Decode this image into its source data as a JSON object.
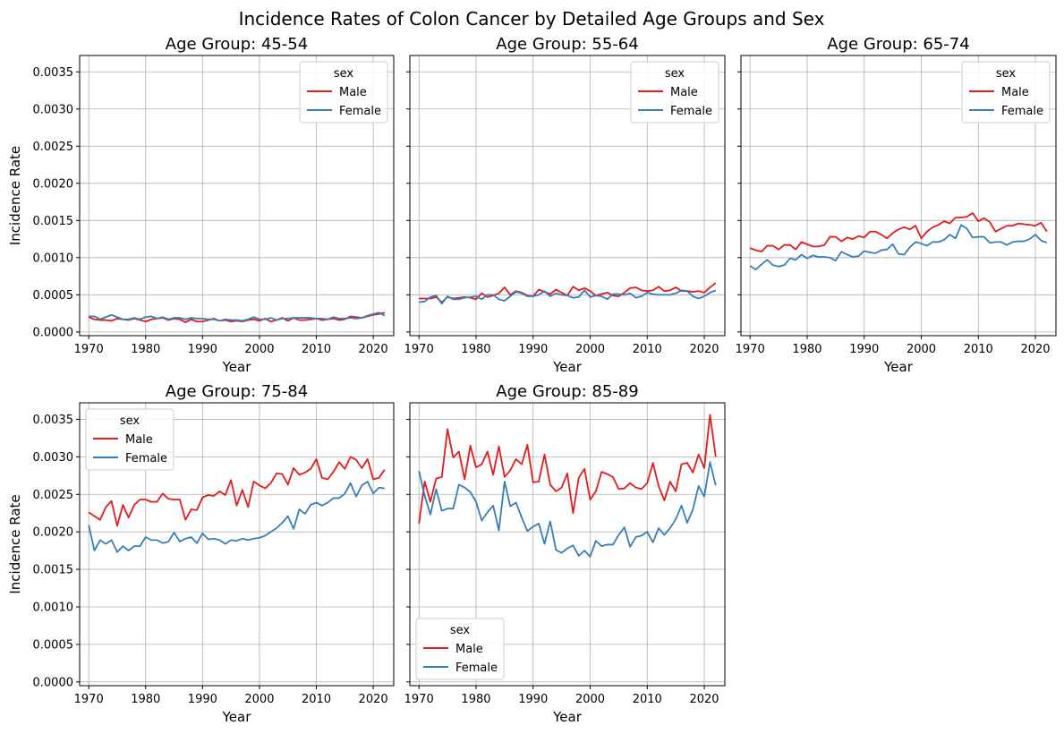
{
  "figure": {
    "title": "Incidence Rates of Colon Cancer by Detailed Age Groups and Sex"
  },
  "colors": {
    "Male": "#e41a1c",
    "Female": "#377eb8",
    "grid": "#b0b0b0"
  },
  "chart_data": [
    {
      "type": "line",
      "title": "Age Group: 45-54",
      "xlabel": "Year",
      "ylabel": "Incidence Rate",
      "xlim": [
        1968.4,
        2023.6
      ],
      "ylim": [
        -5e-05,
        0.00372
      ],
      "xticks": [
        1970,
        1980,
        1990,
        2000,
        2010,
        2020
      ],
      "xtick_labels": [
        "1970",
        "1980",
        "1990",
        "2000",
        "2010",
        "2020"
      ],
      "yticks": [
        0.0,
        0.0005,
        0.001,
        0.0015,
        0.002,
        0.0025,
        0.003,
        0.0035
      ],
      "ytick_labels": [
        "0.0000",
        "0.0005",
        "0.0010",
        "0.0015",
        "0.0020",
        "0.0025",
        "0.0030",
        "0.0035"
      ],
      "grid": true,
      "legend": {
        "title": "sex",
        "position": "top-right",
        "entries": [
          "Male",
          "Female"
        ]
      },
      "x_start": 1970,
      "series": [
        {
          "name": "Male",
          "values": [
            0.0002,
            0.00017,
            0.00016,
            0.00016,
            0.00015,
            0.00018,
            0.00017,
            0.00016,
            0.00018,
            0.00016,
            0.00014,
            0.00017,
            0.00018,
            0.00019,
            0.00016,
            0.00018,
            0.00017,
            0.00013,
            0.00017,
            0.00014,
            0.00014,
            0.00016,
            0.00018,
            0.00015,
            0.00016,
            0.00014,
            0.00015,
            0.00014,
            0.00016,
            0.00017,
            0.00015,
            0.00018,
            0.00014,
            0.00016,
            0.00019,
            0.00015,
            0.00019,
            0.00016,
            0.00016,
            0.00017,
            0.00018,
            0.00016,
            0.00017,
            0.00018,
            0.00016,
            0.00017,
            0.00021,
            0.0002,
            0.00019,
            0.00021,
            0.00023,
            0.00024,
            0.00026
          ]
        },
        {
          "name": "Female",
          "values": [
            0.00021,
            0.00021,
            0.00017,
            0.0002,
            0.00023,
            0.0002,
            0.00017,
            0.00017,
            0.00019,
            0.00017,
            0.0002,
            0.00021,
            0.00018,
            0.0002,
            0.00017,
            0.00019,
            0.00019,
            0.00017,
            0.00019,
            0.00018,
            0.00018,
            0.00017,
            0.00017,
            0.00015,
            0.00017,
            0.00016,
            0.00016,
            0.00015,
            0.00017,
            0.0002,
            0.00017,
            0.00017,
            0.00019,
            0.00016,
            0.00018,
            0.00018,
            0.00019,
            0.00019,
            0.00019,
            0.00019,
            0.00018,
            0.00018,
            0.00017,
            0.0002,
            0.00018,
            0.00018,
            0.00019,
            0.00018,
            0.00019,
            0.00022,
            0.00024,
            0.00026,
            0.00022
          ]
        }
      ]
    },
    {
      "type": "line",
      "title": "Age Group: 55-64",
      "xlabel": "Year",
      "ylabel": "",
      "xlim": [
        1968.4,
        2023.6
      ],
      "ylim": [
        -5e-05,
        0.00372
      ],
      "xticks": [
        1970,
        1980,
        1990,
        2000,
        2010,
        2020
      ],
      "xtick_labels": [
        "1970",
        "1980",
        "1990",
        "2000",
        "2010",
        "2020"
      ],
      "yticks": [
        0.0,
        0.0005,
        0.001,
        0.0015,
        0.002,
        0.0025,
        0.003,
        0.0035
      ],
      "ytick_labels": [],
      "grid": true,
      "legend": {
        "title": "sex",
        "position": "top-right",
        "entries": [
          "Male",
          "Female"
        ]
      },
      "x_start": 1970,
      "series": [
        {
          "name": "Male",
          "values": [
            0.00045,
            0.00045,
            0.00045,
            0.00047,
            0.0004,
            0.00047,
            0.00045,
            0.00046,
            0.00047,
            0.00046,
            0.00044,
            0.00052,
            0.00047,
            0.00049,
            0.00052,
            0.0006,
            0.0005,
            0.00055,
            0.00053,
            0.00049,
            0.00048,
            0.00057,
            0.00054,
            0.00051,
            0.00057,
            0.00053,
            0.00049,
            0.00061,
            0.00056,
            0.00059,
            0.00055,
            0.00049,
            0.00051,
            0.00053,
            0.00049,
            0.00048,
            0.00053,
            0.00059,
            0.0006,
            0.00056,
            0.00055,
            0.00056,
            0.00061,
            0.00055,
            0.00056,
            0.0006,
            0.00055,
            0.00055,
            0.00054,
            0.00055,
            0.00053,
            0.0006,
            0.00066
          ]
        },
        {
          "name": "Female",
          "values": [
            0.0004,
            0.00041,
            0.00047,
            0.00049,
            0.00038,
            0.00048,
            0.00044,
            0.00044,
            0.00046,
            0.00047,
            0.00048,
            0.00044,
            0.0005,
            0.0005,
            0.00044,
            0.00042,
            0.00048,
            0.00054,
            0.00052,
            0.00048,
            0.00048,
            0.0005,
            0.00055,
            0.00048,
            0.00052,
            0.0005,
            0.00049,
            0.00046,
            0.00047,
            0.00056,
            0.00047,
            0.00049,
            0.00048,
            0.00044,
            0.00051,
            0.00051,
            0.0005,
            0.00052,
            0.00046,
            0.00048,
            0.00053,
            0.00051,
            0.0005,
            0.0005,
            0.0005,
            0.00052,
            0.00056,
            0.00055,
            0.00048,
            0.00045,
            0.00048,
            0.00053,
            0.00056
          ]
        }
      ]
    },
    {
      "type": "line",
      "title": "Age Group: 65-74",
      "xlabel": "Year",
      "ylabel": "",
      "xlim": [
        1968.4,
        2023.6
      ],
      "ylim": [
        -5e-05,
        0.00372
      ],
      "xticks": [
        1970,
        1980,
        1990,
        2000,
        2010,
        2020
      ],
      "xtick_labels": [
        "1970",
        "1980",
        "1990",
        "2000",
        "2010",
        "2020"
      ],
      "yticks": [
        0.0,
        0.0005,
        0.001,
        0.0015,
        0.002,
        0.0025,
        0.003,
        0.0035
      ],
      "ytick_labels": [],
      "grid": true,
      "legend": {
        "title": "sex",
        "position": "top-right",
        "entries": [
          "Male",
          "Female"
        ]
      },
      "x_start": 1970,
      "series": [
        {
          "name": "Male",
          "values": [
            0.00113,
            0.0011,
            0.00108,
            0.00116,
            0.00116,
            0.00111,
            0.00117,
            0.00117,
            0.00111,
            0.00121,
            0.00118,
            0.00115,
            0.00115,
            0.00117,
            0.00128,
            0.00128,
            0.00122,
            0.00127,
            0.00125,
            0.00129,
            0.00127,
            0.00135,
            0.00135,
            0.00131,
            0.00126,
            0.00133,
            0.00138,
            0.00141,
            0.00138,
            0.00143,
            0.00126,
            0.00135,
            0.00141,
            0.00144,
            0.00149,
            0.00146,
            0.00154,
            0.00154,
            0.00155,
            0.0016,
            0.00149,
            0.00153,
            0.00148,
            0.00135,
            0.00139,
            0.00143,
            0.00143,
            0.00146,
            0.00145,
            0.00144,
            0.00143,
            0.00147,
            0.00135
          ]
        },
        {
          "name": "Female",
          "values": [
            0.00089,
            0.00084,
            0.00091,
            0.00097,
            0.0009,
            0.00088,
            0.0009,
            0.00099,
            0.00097,
            0.00104,
            0.00099,
            0.00103,
            0.00101,
            0.00101,
            0.001,
            0.00096,
            0.00108,
            0.00104,
            0.00101,
            0.00102,
            0.00109,
            0.00107,
            0.00106,
            0.0011,
            0.00111,
            0.00118,
            0.00105,
            0.00104,
            0.00114,
            0.00121,
            0.00119,
            0.00116,
            0.00121,
            0.00121,
            0.00124,
            0.00131,
            0.00126,
            0.00144,
            0.00139,
            0.00127,
            0.00128,
            0.00128,
            0.0012,
            0.00121,
            0.00121,
            0.00117,
            0.00121,
            0.00122,
            0.00122,
            0.00125,
            0.00131,
            0.00123,
            0.0012
          ]
        }
      ]
    },
    {
      "type": "line",
      "title": "Age Group: 75-84",
      "xlabel": "Year",
      "ylabel": "Incidence Rate",
      "xlim": [
        1968.4,
        2023.6
      ],
      "ylim": [
        -5e-05,
        0.00372
      ],
      "xticks": [
        1970,
        1980,
        1990,
        2000,
        2010,
        2020
      ],
      "xtick_labels": [
        "1970",
        "1980",
        "1990",
        "2000",
        "2010",
        "2020"
      ],
      "yticks": [
        0.0,
        0.0005,
        0.001,
        0.0015,
        0.002,
        0.0025,
        0.003,
        0.0035
      ],
      "ytick_labels": [
        "0.0000",
        "0.0005",
        "0.0010",
        "0.0015",
        "0.0020",
        "0.0025",
        "0.0030",
        "0.0035"
      ],
      "grid": true,
      "legend": {
        "title": "sex",
        "position": "top-left",
        "entries": [
          "Male",
          "Female"
        ]
      },
      "x_start": 1970,
      "series": [
        {
          "name": "Male",
          "values": [
            0.00226,
            0.00221,
            0.00216,
            0.00233,
            0.00241,
            0.00208,
            0.00236,
            0.00219,
            0.00236,
            0.00243,
            0.00243,
            0.0024,
            0.0024,
            0.00251,
            0.00244,
            0.00243,
            0.00243,
            0.00216,
            0.0023,
            0.00229,
            0.00246,
            0.00249,
            0.00248,
            0.00254,
            0.00249,
            0.00269,
            0.00235,
            0.00256,
            0.00233,
            0.00267,
            0.00262,
            0.00258,
            0.00265,
            0.00278,
            0.00277,
            0.00263,
            0.00285,
            0.00276,
            0.00279,
            0.00284,
            0.00297,
            0.00272,
            0.0027,
            0.0028,
            0.00293,
            0.00284,
            0.003,
            0.00296,
            0.00285,
            0.00297,
            0.0027,
            0.00272,
            0.00283
          ]
        },
        {
          "name": "Female",
          "values": [
            0.00209,
            0.00175,
            0.00189,
            0.00184,
            0.00189,
            0.00173,
            0.00181,
            0.00175,
            0.00181,
            0.00181,
            0.00193,
            0.00189,
            0.00189,
            0.00185,
            0.00187,
            0.00199,
            0.00187,
            0.00191,
            0.00193,
            0.00185,
            0.00198,
            0.0019,
            0.00191,
            0.00189,
            0.00184,
            0.00189,
            0.00188,
            0.00191,
            0.00189,
            0.00191,
            0.00192,
            0.00195,
            0.002,
            0.00205,
            0.00212,
            0.00221,
            0.00204,
            0.0023,
            0.00224,
            0.00236,
            0.00239,
            0.00235,
            0.00239,
            0.00245,
            0.00245,
            0.00251,
            0.00265,
            0.00247,
            0.00262,
            0.00267,
            0.00251,
            0.00259,
            0.00258
          ]
        }
      ]
    },
    {
      "type": "line",
      "title": "Age Group: 85-89",
      "xlabel": "Year",
      "ylabel": "",
      "xlim": [
        1968.4,
        2023.6
      ],
      "ylim": [
        -5e-05,
        0.00372
      ],
      "xticks": [
        1970,
        1980,
        1990,
        2000,
        2010,
        2020
      ],
      "xtick_labels": [
        "1970",
        "1980",
        "1990",
        "2000",
        "2010",
        "2020"
      ],
      "yticks": [
        0.0,
        0.0005,
        0.001,
        0.0015,
        0.002,
        0.0025,
        0.003,
        0.0035
      ],
      "ytick_labels": [],
      "grid": true,
      "legend": {
        "title": "sex",
        "position": "bottom-left",
        "entries": [
          "Male",
          "Female"
        ]
      },
      "x_start": 1970,
      "series": [
        {
          "name": "Male",
          "values": [
            0.00211,
            0.00267,
            0.0024,
            0.00271,
            0.00273,
            0.00337,
            0.00299,
            0.00307,
            0.0027,
            0.00315,
            0.00286,
            0.0029,
            0.00307,
            0.00276,
            0.00314,
            0.00273,
            0.00282,
            0.00297,
            0.0029,
            0.00316,
            0.00266,
            0.00267,
            0.00303,
            0.00263,
            0.00254,
            0.00259,
            0.00278,
            0.00225,
            0.00272,
            0.00284,
            0.00243,
            0.00254,
            0.0028,
            0.00277,
            0.00273,
            0.00257,
            0.00258,
            0.00265,
            0.00259,
            0.00257,
            0.00265,
            0.00292,
            0.00261,
            0.00242,
            0.00267,
            0.00254,
            0.0029,
            0.00292,
            0.00279,
            0.00303,
            0.00285,
            0.00356,
            0.003
          ]
        },
        {
          "name": "Female",
          "values": [
            0.00281,
            0.00248,
            0.00223,
            0.00257,
            0.00228,
            0.00231,
            0.00231,
            0.00263,
            0.00259,
            0.00253,
            0.0024,
            0.00215,
            0.00226,
            0.00235,
            0.00202,
            0.00267,
            0.00234,
            0.00239,
            0.00219,
            0.00201,
            0.00207,
            0.00211,
            0.00184,
            0.00214,
            0.00176,
            0.00172,
            0.00178,
            0.00182,
            0.00168,
            0.00175,
            0.00167,
            0.00188,
            0.00181,
            0.00183,
            0.00183,
            0.00196,
            0.00206,
            0.0018,
            0.00193,
            0.00195,
            0.002,
            0.00186,
            0.00205,
            0.00196,
            0.00205,
            0.00217,
            0.00235,
            0.00212,
            0.0023,
            0.00261,
            0.00247,
            0.00293,
            0.00262
          ]
        }
      ]
    }
  ]
}
